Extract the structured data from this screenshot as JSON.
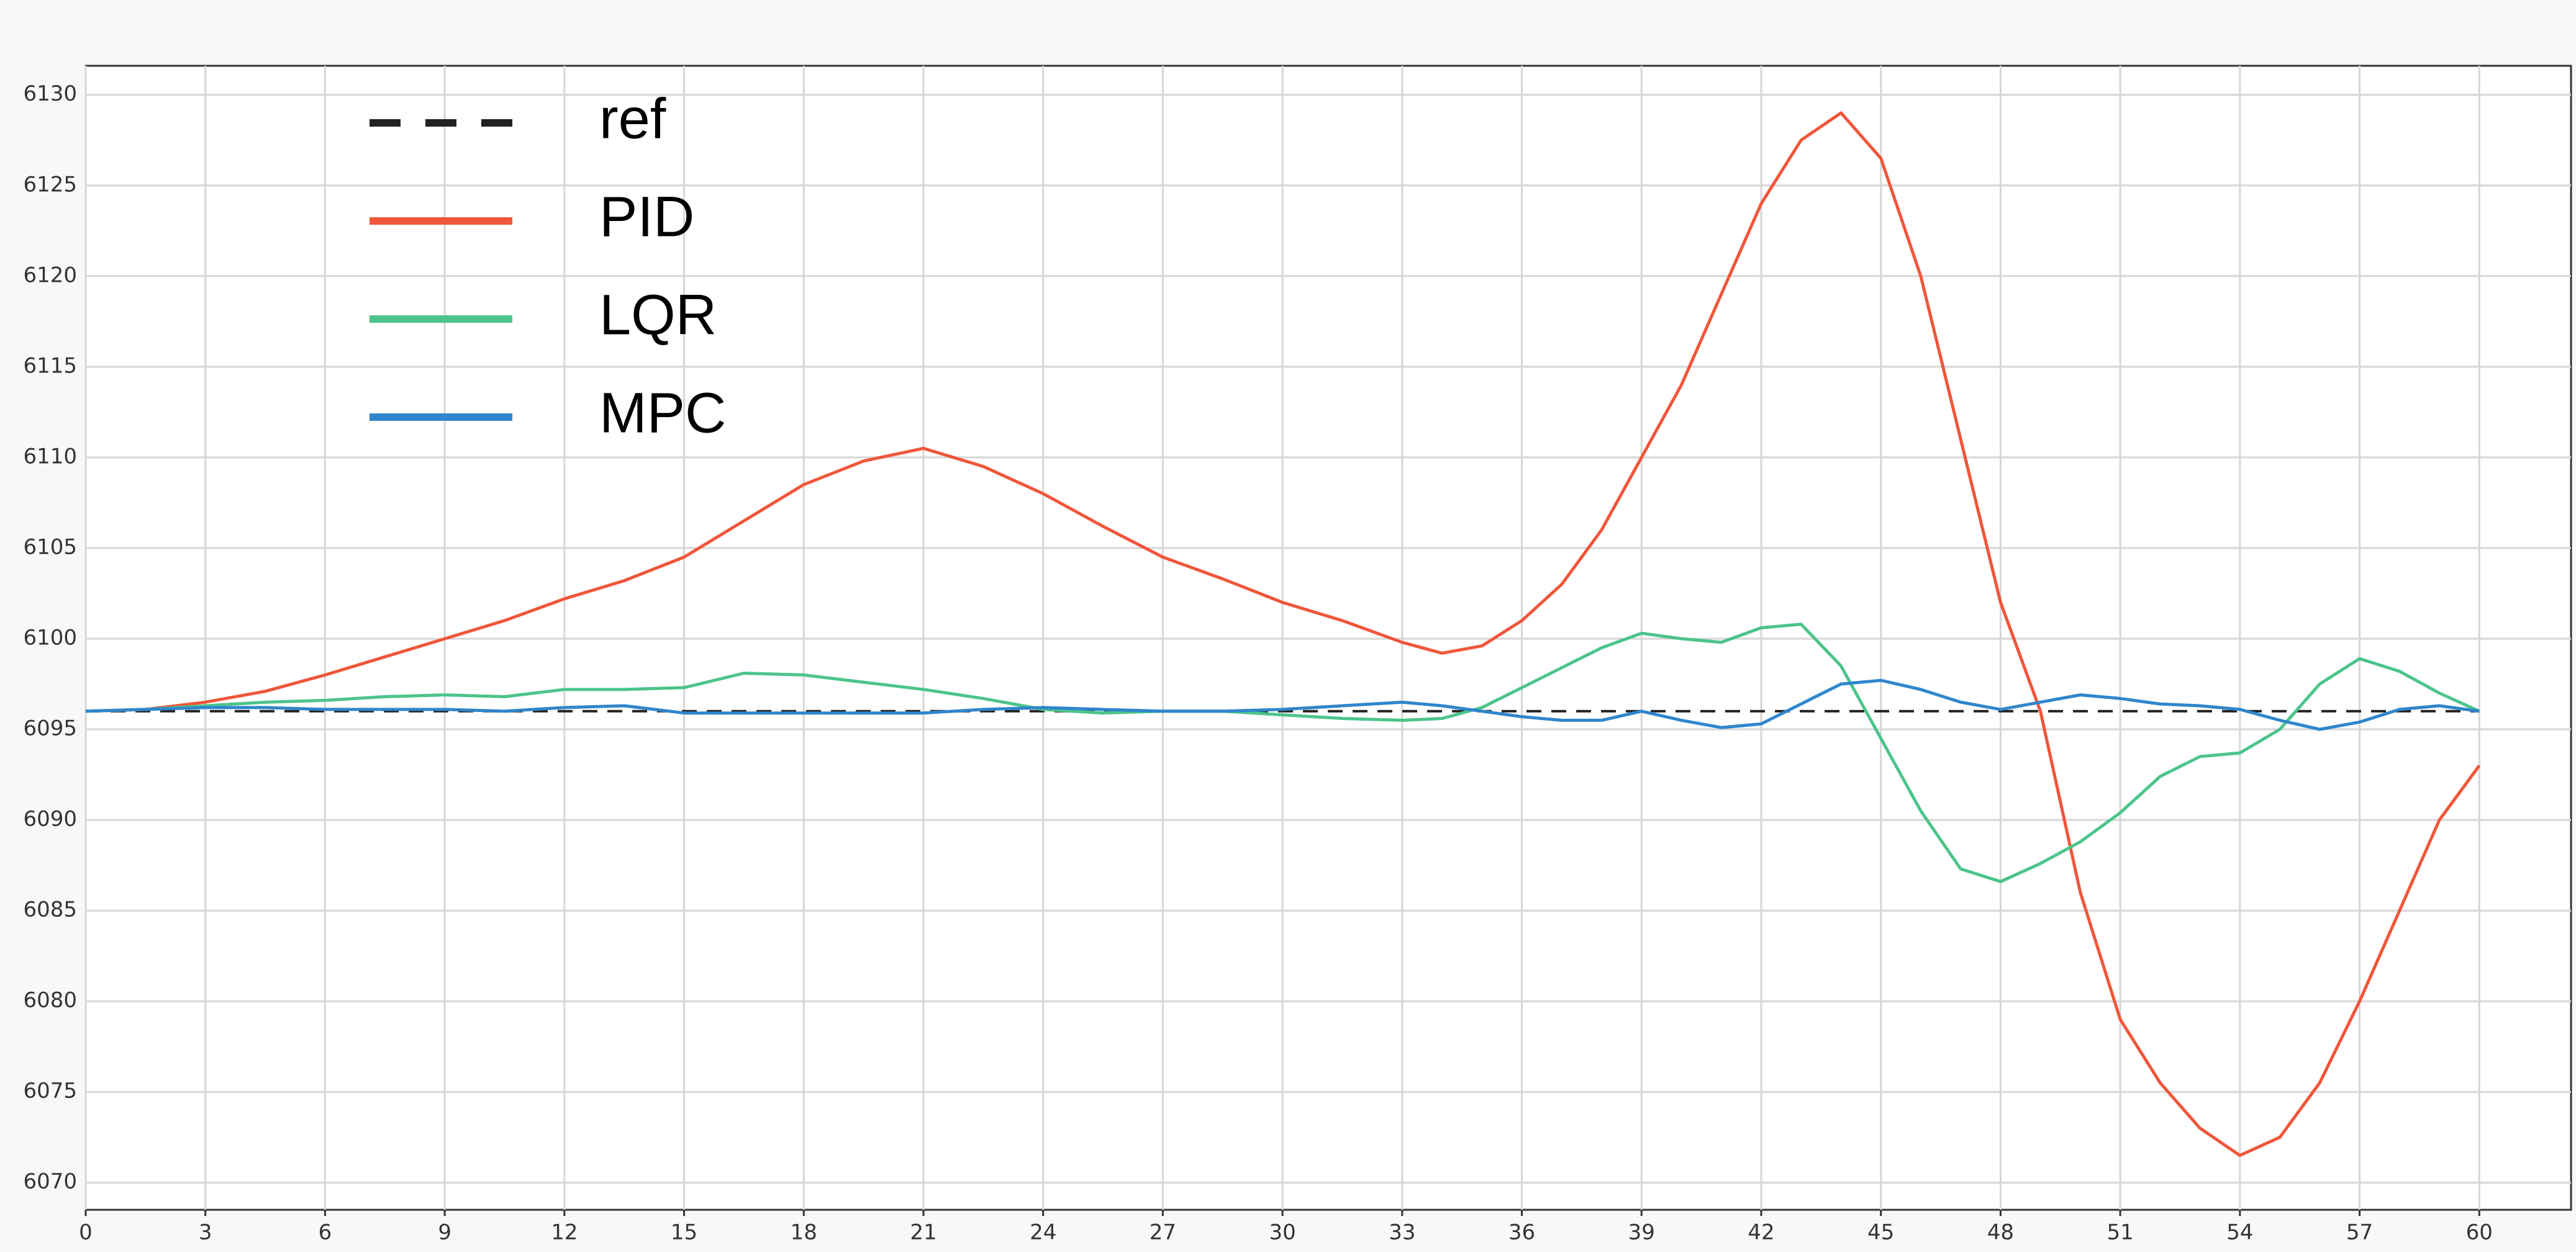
{
  "chart_data": {
    "type": "line",
    "x": [
      0,
      1.5,
      3,
      4.5,
      6,
      7.5,
      9,
      10.5,
      12,
      13.5,
      15,
      16.5,
      18,
      19.5,
      21,
      22.5,
      24,
      25.5,
      27,
      28.5,
      30,
      31.5,
      33,
      34,
      35,
      36,
      37,
      38,
      39,
      40,
      41,
      42,
      43,
      44,
      45,
      46,
      47,
      48,
      49,
      50,
      51,
      52,
      53,
      54,
      55,
      56,
      57,
      58,
      59,
      60
    ],
    "series": [
      {
        "name": "ref",
        "color": "#222222",
        "dashed": true,
        "x": [
          0,
          60
        ],
        "values": [
          6096,
          6096
        ]
      },
      {
        "name": "PID",
        "color": "#f0563a",
        "values": [
          6096,
          6096.1,
          6096.5,
          6097.1,
          6098,
          6099,
          6100,
          6101,
          6102.2,
          6103.2,
          6104.5,
          6106.5,
          6108.5,
          6109.8,
          6110.5,
          6109.5,
          6108,
          6106.2,
          6104.5,
          6103.3,
          6102,
          6101,
          6099.8,
          6099.2,
          6099.6,
          6101,
          6103,
          6106,
          6110,
          6114,
          6119,
          6124,
          6127.5,
          6129,
          6126.5,
          6120,
          6111,
          6102,
          6096,
          6086,
          6079,
          6075.5,
          6073,
          6071.5,
          6072.5,
          6075.5,
          6080,
          6085,
          6090,
          6093
        ]
      },
      {
        "name": "LQR",
        "color": "#4cc48a",
        "values": [
          6096,
          6096.1,
          6096.3,
          6096.5,
          6096.6,
          6096.8,
          6096.9,
          6096.8,
          6097.2,
          6097.2,
          6097.3,
          6098.1,
          6098,
          6097.6,
          6097.2,
          6096.7,
          6096.1,
          6095.9,
          6096,
          6096,
          6095.8,
          6095.6,
          6095.5,
          6095.6,
          6096.2,
          6097.3,
          6098.4,
          6099.5,
          6100.3,
          6100,
          6099.8,
          6100.6,
          6100.8,
          6098.5,
          6094.5,
          6090.5,
          6087.3,
          6086.6,
          6087.6,
          6088.8,
          6090.4,
          6092.4,
          6093.5,
          6093.7,
          6095,
          6097.5,
          6098.9,
          6098.2,
          6097,
          6096
        ]
      },
      {
        "name": "MPC",
        "color": "#2f86cc",
        "values": [
          6096,
          6096.1,
          6096.2,
          6096.2,
          6096.1,
          6096.1,
          6096.1,
          6096,
          6096.2,
          6096.3,
          6095.9,
          6095.9,
          6095.9,
          6095.9,
          6095.9,
          6096.1,
          6096.2,
          6096.1,
          6096,
          6096,
          6096.1,
          6096.3,
          6096.5,
          6096.3,
          6096,
          6095.7,
          6095.5,
          6095.5,
          6096,
          6095.5,
          6095.1,
          6095.3,
          6096.4,
          6097.5,
          6097.7,
          6097.2,
          6096.5,
          6096.1,
          6096.5,
          6096.9,
          6096.7,
          6096.4,
          6096.3,
          6096.1,
          6095.5,
          6095,
          6095.4,
          6096.1,
          6096.3,
          6096
        ]
      }
    ],
    "xlim": [
      0,
      62.3
    ],
    "xticks": [
      0,
      3,
      6,
      9,
      12,
      15,
      18,
      21,
      24,
      27,
      30,
      33,
      36,
      39,
      42,
      45,
      48,
      51,
      54,
      57,
      60
    ],
    "ylim": [
      6068.5,
      6131.6
    ],
    "yticks": [
      6070,
      6075,
      6080,
      6085,
      6090,
      6095,
      6100,
      6105,
      6110,
      6115,
      6120,
      6125,
      6130
    ],
    "grid": true,
    "legend": "upper-left"
  }
}
